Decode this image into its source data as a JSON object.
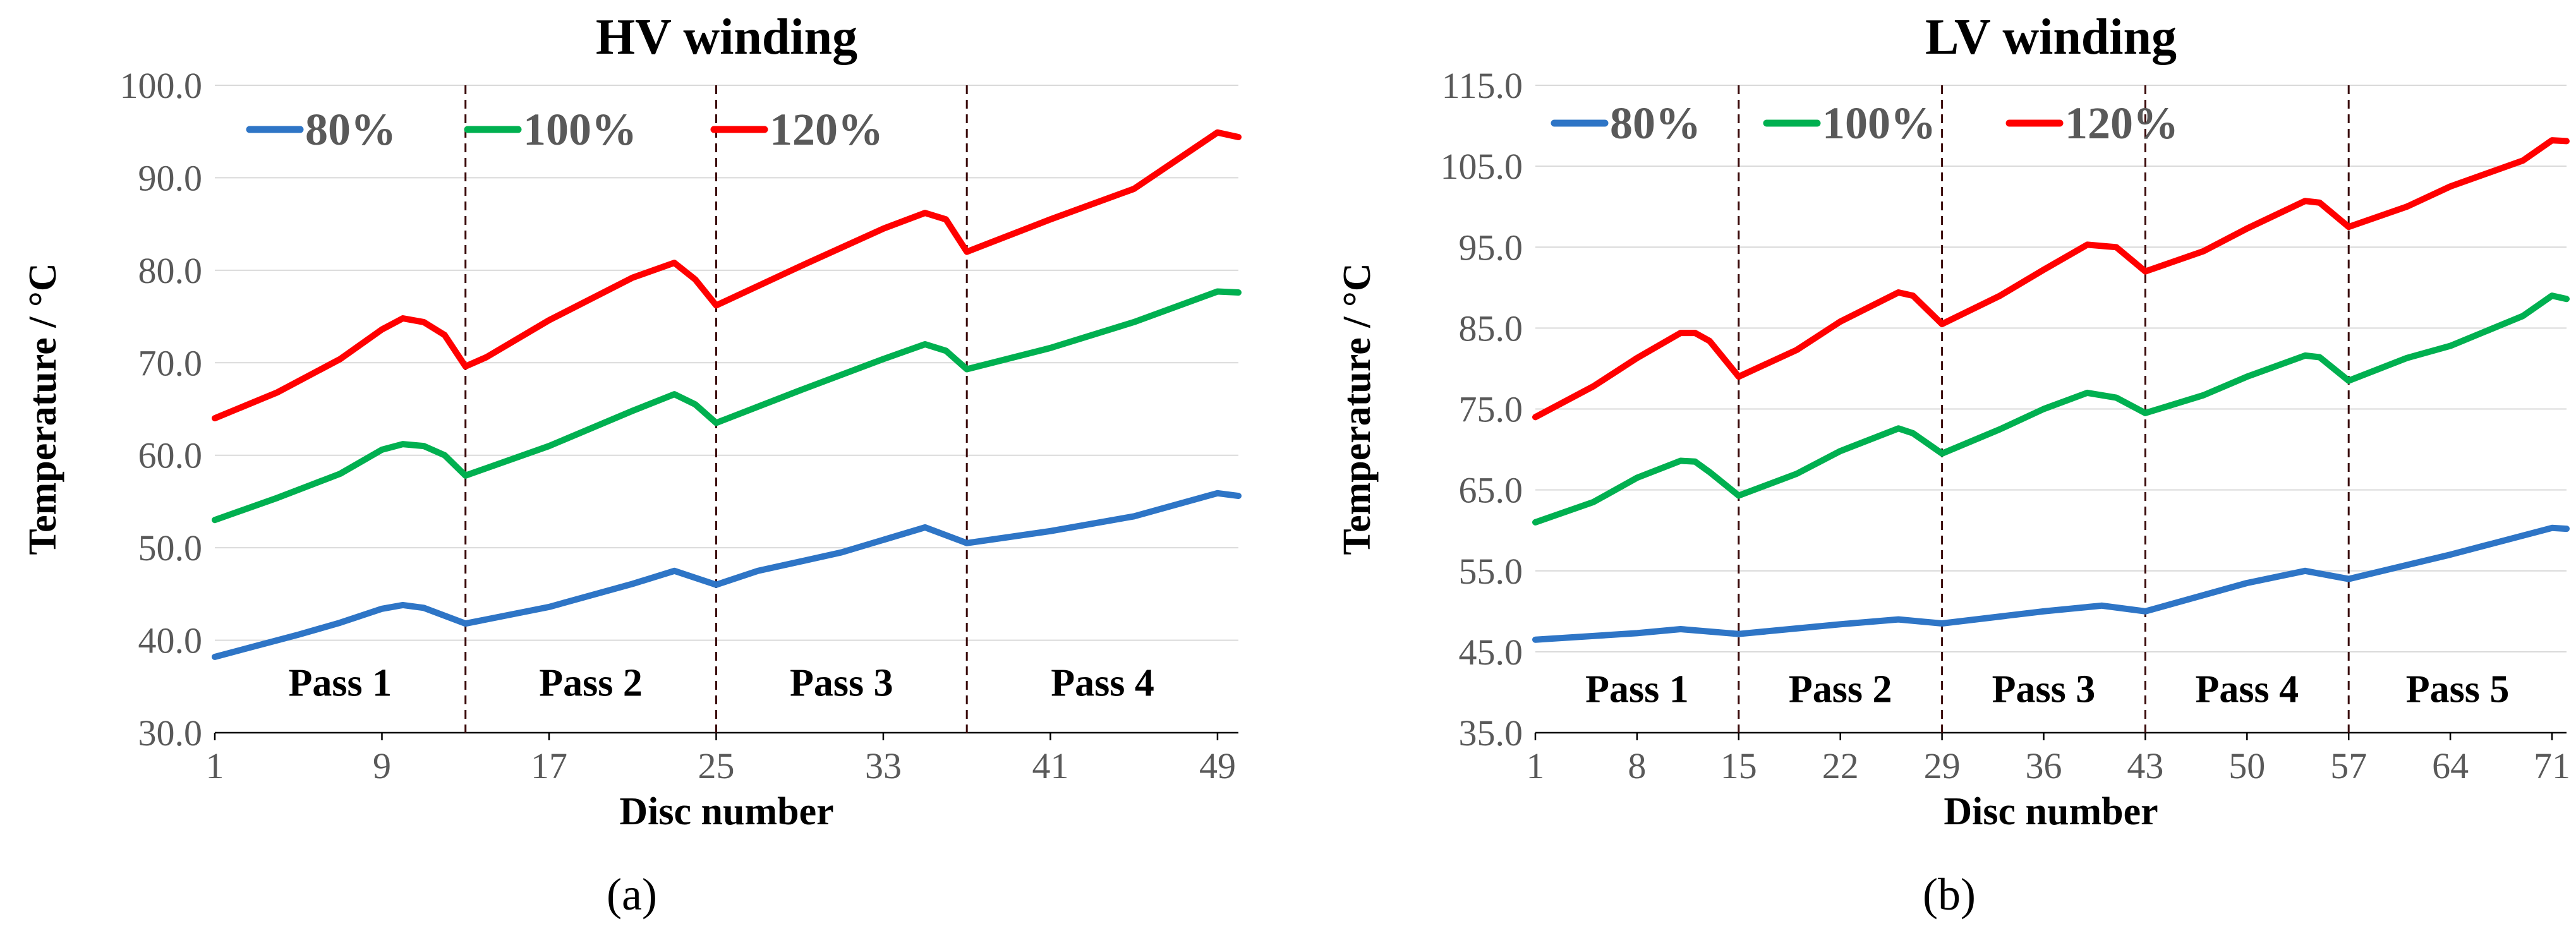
{
  "chart_data": [
    {
      "type": "line",
      "panel": "a",
      "caption": "(a)",
      "title": "HV winding",
      "xlabel": "Disc number",
      "ylabel": "Temperature / °C",
      "xlim": [
        1,
        50
      ],
      "ylim": [
        30,
        100
      ],
      "xticks": [
        1,
        9,
        17,
        25,
        33,
        41,
        49
      ],
      "yticks": [
        "30.0",
        "40.0",
        "50.0",
        "60.0",
        "70.0",
        "80.0",
        "90.0",
        "100.0"
      ],
      "grid": true,
      "legend_position": "top-left",
      "pass_boundaries": [
        13,
        25,
        37
      ],
      "pass_labels": [
        {
          "label": "Pass 1",
          "x": 7
        },
        {
          "label": "Pass 2",
          "x": 19
        },
        {
          "label": "Pass 3",
          "x": 31
        },
        {
          "label": "Pass 4",
          "x": 43.5
        }
      ],
      "pass_label_y": 35.5,
      "series": [
        {
          "name": "80%",
          "color": "#2e75c6",
          "x": [
            1,
            5,
            7,
            9,
            10,
            11,
            13,
            17,
            21,
            23,
            25,
            27,
            31,
            35,
            37,
            41,
            45,
            49,
            50
          ],
          "values": [
            38.2,
            40.6,
            41.9,
            43.4,
            43.8,
            43.5,
            41.8,
            43.6,
            46.1,
            47.5,
            46.0,
            47.5,
            49.5,
            52.2,
            50.5,
            51.8,
            53.4,
            55.9,
            55.6
          ]
        },
        {
          "name": "100%",
          "color": "#00b050",
          "x": [
            1,
            4,
            7,
            9,
            10,
            11,
            12,
            13,
            14,
            17,
            21,
            23,
            24,
            25,
            29,
            33,
            35,
            36,
            37,
            41,
            45,
            49,
            50
          ],
          "values": [
            53.0,
            55.4,
            58.0,
            60.6,
            61.2,
            61.0,
            60.0,
            57.8,
            58.6,
            61.0,
            64.8,
            66.6,
            65.5,
            63.5,
            67.0,
            70.4,
            72.0,
            71.3,
            69.3,
            71.6,
            74.4,
            77.7,
            77.6
          ]
        },
        {
          "name": "120%",
          "color": "#ff0000",
          "x": [
            1,
            4,
            7,
            9,
            10,
            11,
            12,
            13,
            14,
            17,
            21,
            23,
            24,
            25,
            29,
            33,
            35,
            36,
            37,
            41,
            45,
            49,
            50
          ],
          "values": [
            64.0,
            66.8,
            70.4,
            73.6,
            74.8,
            74.4,
            73.0,
            69.6,
            70.6,
            74.6,
            79.2,
            80.8,
            79.0,
            76.2,
            80.4,
            84.5,
            86.2,
            85.5,
            82.0,
            85.5,
            88.8,
            94.9,
            94.4
          ]
        }
      ]
    },
    {
      "type": "line",
      "panel": "b",
      "caption": "(b)",
      "title": "LV winding",
      "xlabel": "Disc number",
      "ylabel": "Temperature / °C",
      "xlim": [
        1,
        72
      ],
      "ylim": [
        35,
        115
      ],
      "xticks": [
        1,
        8,
        15,
        22,
        29,
        36,
        43,
        50,
        57,
        64,
        71
      ],
      "yticks": [
        "35.0",
        "45.0",
        "55.0",
        "65.0",
        "75.0",
        "85.0",
        "95.0",
        "105.0",
        "115.0"
      ],
      "grid": true,
      "legend_position": "top-left",
      "pass_boundaries": [
        15,
        29,
        43,
        57
      ],
      "pass_labels": [
        {
          "label": "Pass 1",
          "x": 8
        },
        {
          "label": "Pass 2",
          "x": 22
        },
        {
          "label": "Pass 3",
          "x": 36
        },
        {
          "label": "Pass 4",
          "x": 50
        },
        {
          "label": "Pass 5",
          "x": 64.5
        }
      ],
      "pass_label_y": 40.5,
      "series": [
        {
          "name": "80%",
          "color": "#2e75c6",
          "x": [
            1,
            8,
            11,
            15,
            22,
            26,
            29,
            36,
            40,
            43,
            50,
            54,
            57,
            64,
            71,
            72
          ],
          "values": [
            46.5,
            47.3,
            47.8,
            47.2,
            48.4,
            49.0,
            48.5,
            50.0,
            50.7,
            50.0,
            53.5,
            55.0,
            54.0,
            57.0,
            60.3,
            60.2
          ]
        },
        {
          "name": "100%",
          "color": "#00b050",
          "x": [
            1,
            5,
            8,
            11,
            12,
            13,
            15,
            19,
            22,
            26,
            27,
            29,
            33,
            36,
            39,
            41,
            43,
            47,
            50,
            54,
            55,
            57,
            61,
            64,
            69,
            71,
            72
          ],
          "values": [
            61.0,
            63.5,
            66.5,
            68.6,
            68.5,
            67.2,
            64.3,
            67.0,
            69.8,
            72.6,
            72.0,
            69.5,
            72.5,
            75.0,
            77.0,
            76.4,
            74.5,
            76.7,
            79.0,
            81.6,
            81.4,
            78.5,
            81.3,
            82.8,
            86.5,
            89.0,
            88.6
          ]
        },
        {
          "name": "120%",
          "color": "#ff0000",
          "x": [
            1,
            5,
            8,
            11,
            12,
            13,
            15,
            19,
            22,
            26,
            27,
            29,
            33,
            36,
            39,
            41,
            43,
            47,
            50,
            54,
            55,
            57,
            61,
            64,
            69,
            71,
            72
          ],
          "values": [
            74.0,
            77.8,
            81.3,
            84.4,
            84.4,
            83.4,
            79.0,
            82.3,
            85.8,
            89.4,
            89.0,
            85.5,
            89.0,
            92.2,
            95.3,
            95.0,
            92.0,
            94.5,
            97.3,
            100.7,
            100.5,
            97.5,
            100.0,
            102.5,
            105.7,
            108.2,
            108.1
          ]
        }
      ]
    }
  ]
}
